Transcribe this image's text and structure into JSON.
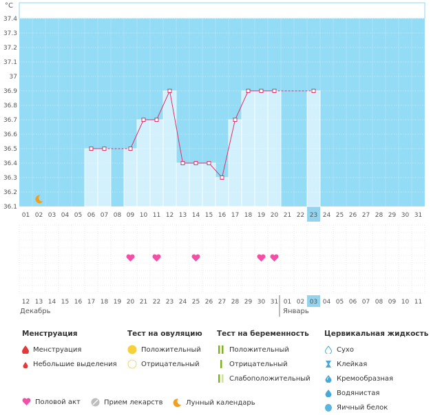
{
  "chart_data": {
    "type": "bar",
    "unit": "°C",
    "ylim": [
      36.1,
      37.4
    ],
    "yticks": [
      "36.1",
      "36.2",
      "36.3",
      "36.4",
      "36.5",
      "36.6",
      "36.7",
      "36.8",
      "36.9",
      "37",
      "37.1",
      "37.2",
      "37.3",
      "37.4"
    ],
    "cycle_days": [
      "01",
      "02",
      "03",
      "04",
      "05",
      "06",
      "07",
      "08",
      "09",
      "10",
      "11",
      "12",
      "13",
      "14",
      "15",
      "16",
      "17",
      "18",
      "19",
      "20",
      "21",
      "22",
      "23",
      "24",
      "25",
      "26",
      "27",
      "28",
      "29",
      "30",
      "31"
    ],
    "temperatures": [
      null,
      null,
      null,
      null,
      null,
      36.5,
      36.5,
      null,
      36.5,
      36.7,
      36.7,
      36.9,
      36.4,
      36.4,
      36.4,
      36.3,
      36.7,
      36.9,
      36.9,
      36.9,
      null,
      null,
      36.9,
      null,
      null,
      null,
      null,
      null,
      null,
      null,
      null
    ],
    "dashed_segments": [
      [
        6,
        8
      ],
      [
        19,
        22
      ]
    ],
    "highlight_index": 22,
    "moon_index": 1,
    "intercourse_indices": [
      8,
      10,
      13,
      18,
      19
    ],
    "dates": [
      "12",
      "13",
      "14",
      "15",
      "16",
      "17",
      "18",
      "19",
      "20",
      "21",
      "22",
      "23",
      "24",
      "25",
      "26",
      "27",
      "28",
      "29",
      "30",
      "31",
      "01",
      "02",
      "03",
      "04",
      "05",
      "06",
      "07",
      "08",
      "09",
      "10",
      "11"
    ],
    "red_date_indices": [
      3,
      4,
      10,
      11,
      17,
      18,
      24,
      25
    ],
    "month_separator_index": 20
  },
  "months": {
    "first": "Декабрь",
    "second": "Январь"
  },
  "legend": {
    "menstruation": {
      "title": "Менструация",
      "items": [
        "Менструация",
        "Небольшие выделения"
      ]
    },
    "ovulation": {
      "title": "Тест на овуляцию",
      "items": [
        "Положительный",
        "Отрицательный"
      ]
    },
    "pregnancy": {
      "title": "Тест на беременность",
      "items": [
        "Положительный",
        "Отрицательный",
        "Слабоположительный"
      ]
    },
    "cervical": {
      "title": "Цервикальная жидкость",
      "items": [
        "Сухо",
        "Клейкая",
        "Кремообразная",
        "Водянистая",
        "Яичный белок"
      ]
    },
    "bottom": [
      "Половой акт",
      "Прием лекарств",
      "Лунный календарь"
    ]
  },
  "colors": {
    "plot_bg": "#94dbf5",
    "bar_fill": "#d3f0fd",
    "bar_edge": "#ffffff",
    "line": "#d9346a",
    "marker": "#d9346a",
    "grid": "#ffffff",
    "highlight": "#94d3ee",
    "heart": "#f24fa7",
    "moon": "#f0a020",
    "red_date": "#e03040"
  }
}
